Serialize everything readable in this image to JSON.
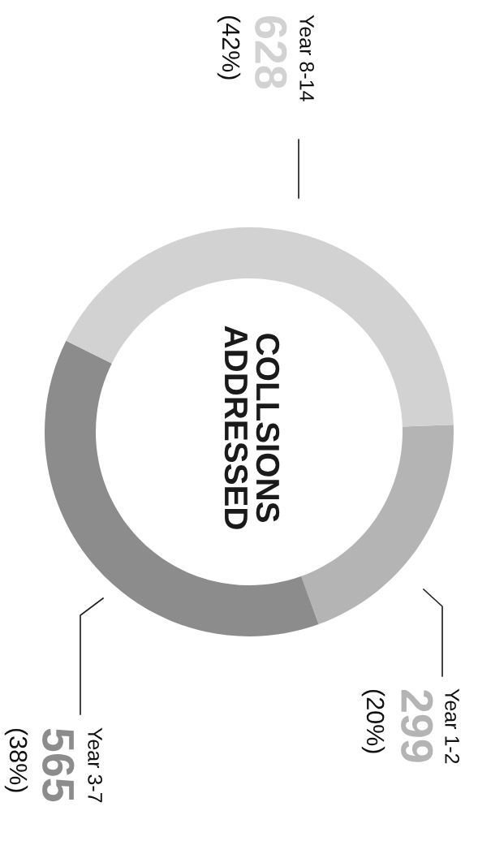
{
  "chart_data": {
    "type": "donut",
    "title": "COLLSIONS\nADDRESSED",
    "categories": [
      "Year 1-2",
      "Year 3-7",
      "Year 8-14"
    ],
    "values": [
      299,
      565,
      628
    ],
    "colors": [
      "#b4b4b4",
      "#8c8c8c",
      "#d2d2d2"
    ],
    "value_labels": [
      "299",
      "565",
      "628"
    ],
    "annotations": [
      "(20%)",
      "(38%)",
      "(42%)"
    ],
    "legend": false
  }
}
